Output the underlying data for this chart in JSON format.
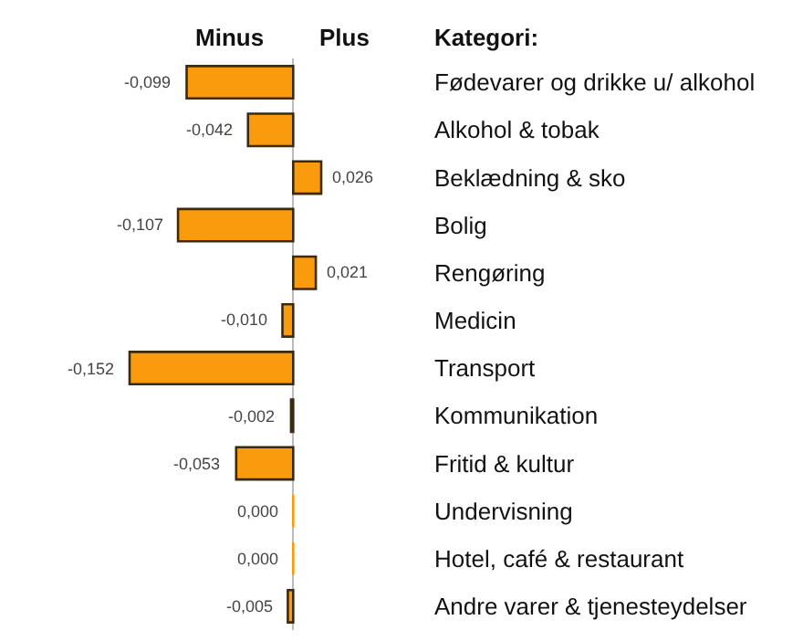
{
  "chart_data": {
    "type": "bar",
    "orientation": "horizontal",
    "categories": [
      "Fødevarer og drikke u/ alkohol",
      "Alkohol & tobak",
      "Beklædning & sko",
      "Bolig",
      "Rengøring",
      "Medicin",
      "Transport",
      "Kommunikation",
      "Fritid & kultur",
      "Undervisning",
      "Hotel, café & restaurant",
      "Andre varer & tjenesteydelser"
    ],
    "values": [
      -0.099,
      -0.042,
      0.026,
      -0.107,
      0.021,
      -0.01,
      -0.152,
      -0.002,
      -0.053,
      0.0,
      0.0,
      -0.005
    ],
    "value_labels": [
      "-0,099",
      "-0,042",
      "0,026",
      "-0,107",
      "0,021",
      "-0,010",
      "-0,152",
      "-0,002",
      "-0,053",
      "0,000",
      "0,000",
      "-0,005"
    ],
    "color": "#f99b0c",
    "tick_labels": "y",
    "grid": false,
    "legend": false,
    "annotations": [
      "Minus",
      "Plus",
      "Kategori:"
    ]
  }
}
